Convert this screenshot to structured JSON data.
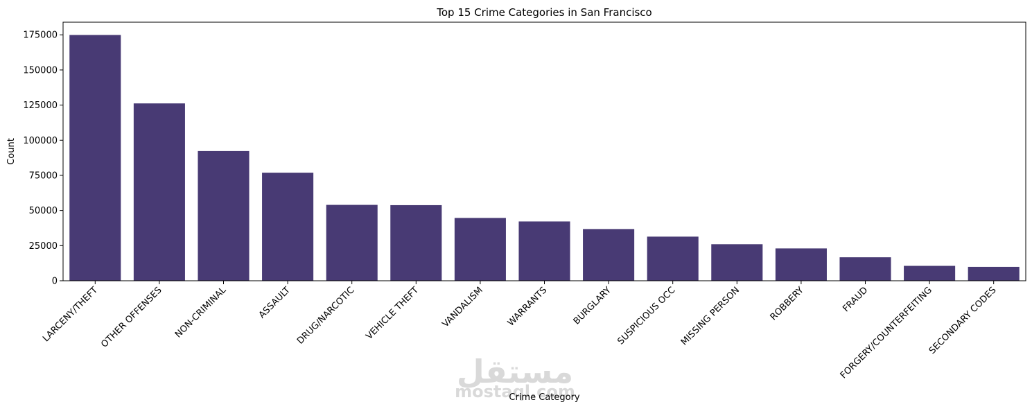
{
  "chart_data": {
    "type": "bar",
    "title": "Top 15 Crime Categories in San Francisco",
    "xlabel": "Crime Category",
    "ylabel": "Count",
    "categories": [
      "LARCENY/THEFT",
      "OTHER OFFENSES",
      "NON-CRIMINAL",
      "ASSAULT",
      "DRUG/NARCOTIC",
      "VEHICLE THEFT",
      "VANDALISM",
      "WARRANTS",
      "BURGLARY",
      "SUSPICIOUS OCC",
      "MISSING PERSON",
      "ROBBERY",
      "FRAUD",
      "FORGERY/COUNTERFEITING",
      "SECONDARY CODES"
    ],
    "values": [
      174900,
      126200,
      92300,
      76900,
      54000,
      53800,
      44700,
      42200,
      36800,
      31400,
      26000,
      23000,
      16700,
      10600,
      9900
    ],
    "ylim": [
      0,
      184000
    ],
    "yticks": [
      0,
      25000,
      50000,
      75000,
      100000,
      125000,
      150000,
      175000
    ],
    "bar_color": "#483A74",
    "grid": false
  },
  "watermark": {
    "arabic": "مستقل",
    "latin": "mostaql.com"
  }
}
